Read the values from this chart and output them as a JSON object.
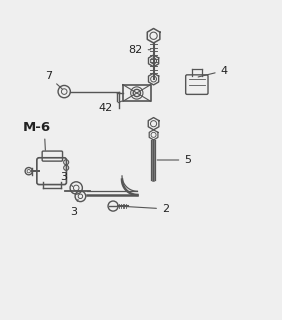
{
  "bg_color": "#efefef",
  "line_color": "#555555",
  "dark_color": "#222222",
  "figsize": [
    2.82,
    3.2
  ],
  "dpi": 100
}
